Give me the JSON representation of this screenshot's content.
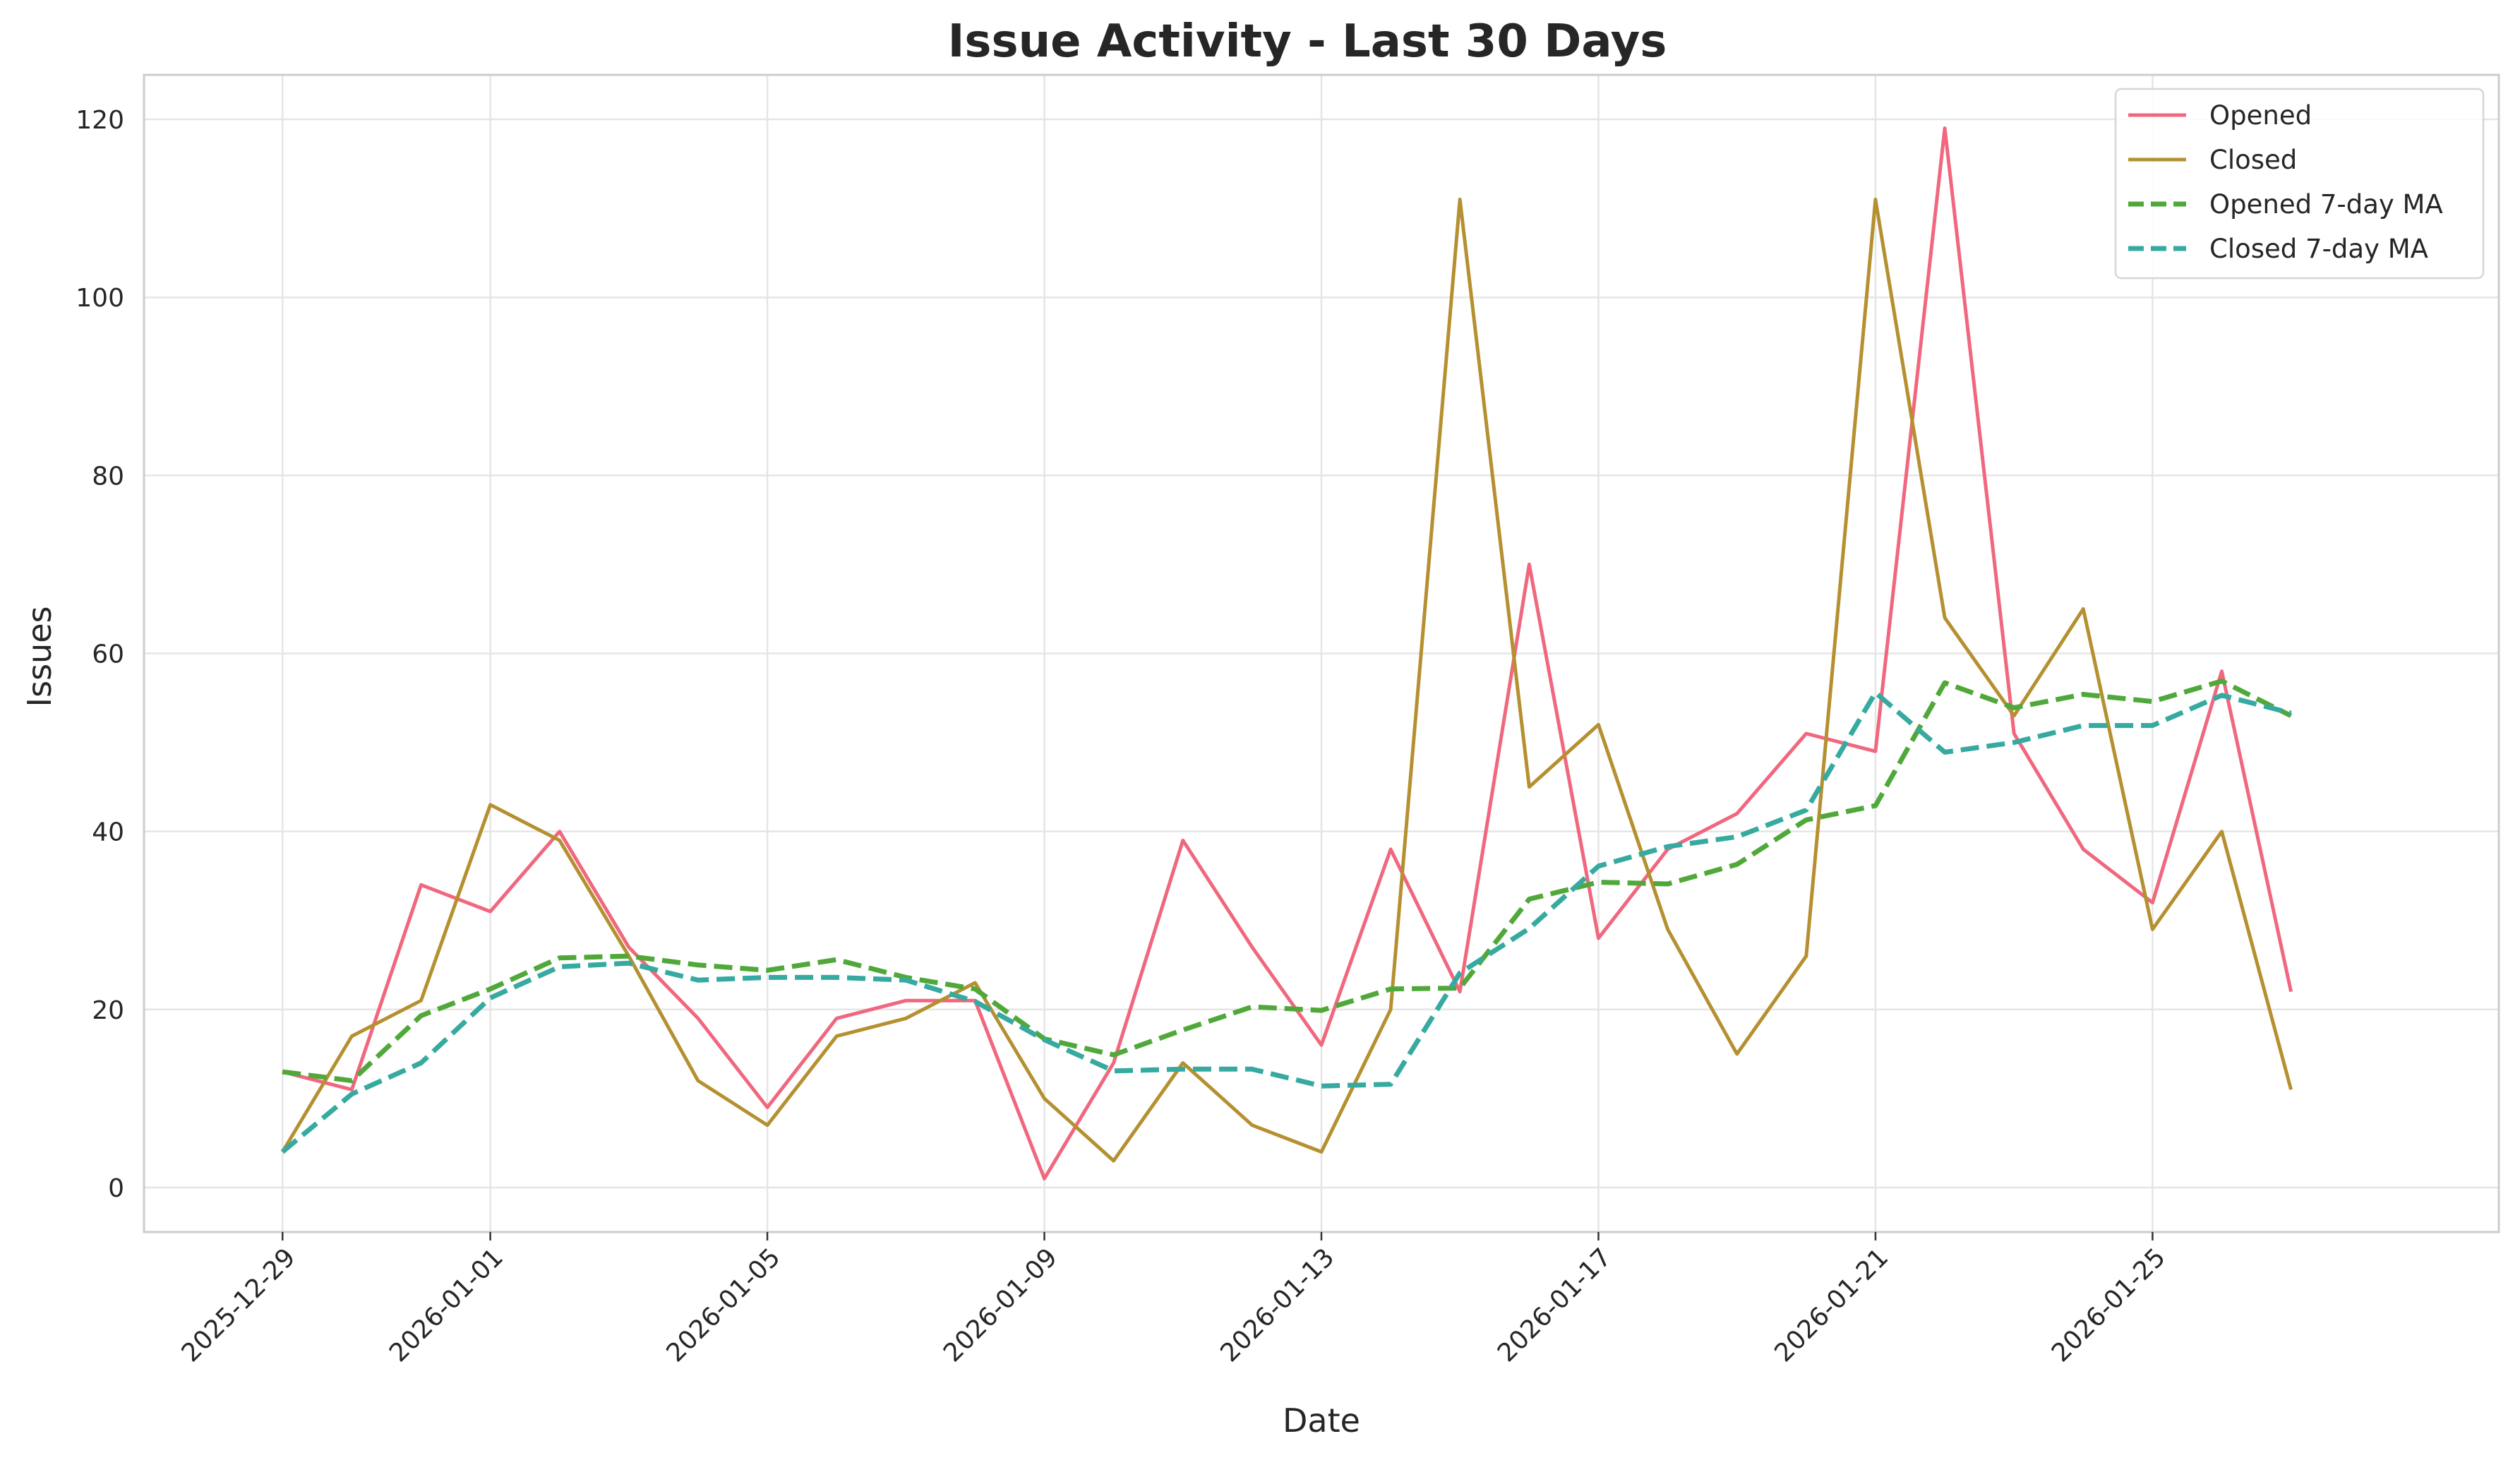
{
  "chart_data": {
    "type": "line",
    "title": "Issue Activity - Last 30 Days",
    "xlabel": "Date",
    "ylabel": "Issues",
    "ylim": [
      -5,
      125
    ],
    "xlim": [
      "2025-12-27",
      "2026-01-30"
    ],
    "yticks": [
      0,
      20,
      40,
      60,
      80,
      100,
      120
    ],
    "xticks": [
      "2025-12-29",
      "2026-01-01",
      "2026-01-05",
      "2026-01-09",
      "2026-01-13",
      "2026-01-17",
      "2026-01-21",
      "2026-01-25"
    ],
    "grid": true,
    "legend_position": "top-right",
    "x": [
      "2025-12-29",
      "2025-12-30",
      "2025-12-31",
      "2026-01-01",
      "2026-01-02",
      "2026-01-03",
      "2026-01-04",
      "2026-01-05",
      "2026-01-06",
      "2026-01-07",
      "2026-01-08",
      "2026-01-09",
      "2026-01-10",
      "2026-01-11",
      "2026-01-12",
      "2026-01-13",
      "2026-01-14",
      "2026-01-15",
      "2026-01-16",
      "2026-01-17",
      "2026-01-18",
      "2026-01-19",
      "2026-01-20",
      "2026-01-21",
      "2026-01-22",
      "2026-01-23",
      "2026-01-24",
      "2026-01-25",
      "2026-01-26",
      "2026-01-27"
    ],
    "series": [
      {
        "name": "Opened",
        "color": "#f0677e",
        "style": "solid",
        "values": [
          13,
          11,
          34,
          31,
          40,
          27,
          19,
          9,
          19,
          21,
          21,
          1,
          14,
          39,
          27,
          16,
          38,
          22,
          70,
          28,
          38,
          42,
          51,
          49,
          119,
          51,
          38,
          32,
          58,
          22
        ]
      },
      {
        "name": "Closed",
        "color": "#b59030",
        "style": "solid",
        "values": [
          4,
          17,
          21,
          43,
          39,
          26,
          12,
          7,
          17,
          19,
          23,
          10,
          3,
          14,
          7,
          4,
          20,
          111,
          45,
          52,
          29,
          15,
          26,
          111,
          64,
          53,
          65,
          29,
          40,
          11
        ]
      },
      {
        "name": "Opened 7-day MA",
        "color": "#50a83a",
        "style": "dashed",
        "values": [
          13,
          12,
          19.3,
          22.3,
          25.8,
          26,
          25,
          24.4,
          25.6,
          23.6,
          22.3,
          16.7,
          14.9,
          17.7,
          20.3,
          19.9,
          22.3,
          22.4,
          32.4,
          34.3,
          34.1,
          36.3,
          41.3,
          42.9,
          56.7,
          53.9,
          55.4,
          54.6,
          56.9,
          53
        ]
      },
      {
        "name": "Closed 7-day MA",
        "color": "#36aaa0",
        "style": "dashed",
        "values": [
          4,
          10.5,
          14,
          21.3,
          24.8,
          25.2,
          23.3,
          23.6,
          23.6,
          23.3,
          20.9,
          16.6,
          13.1,
          13.3,
          13.3,
          11.4,
          11.6,
          24.1,
          29.1,
          36.1,
          38.3,
          39.4,
          42.4,
          55.6,
          48.9,
          50,
          51.9,
          51.9,
          55.3,
          53.3
        ]
      }
    ]
  }
}
